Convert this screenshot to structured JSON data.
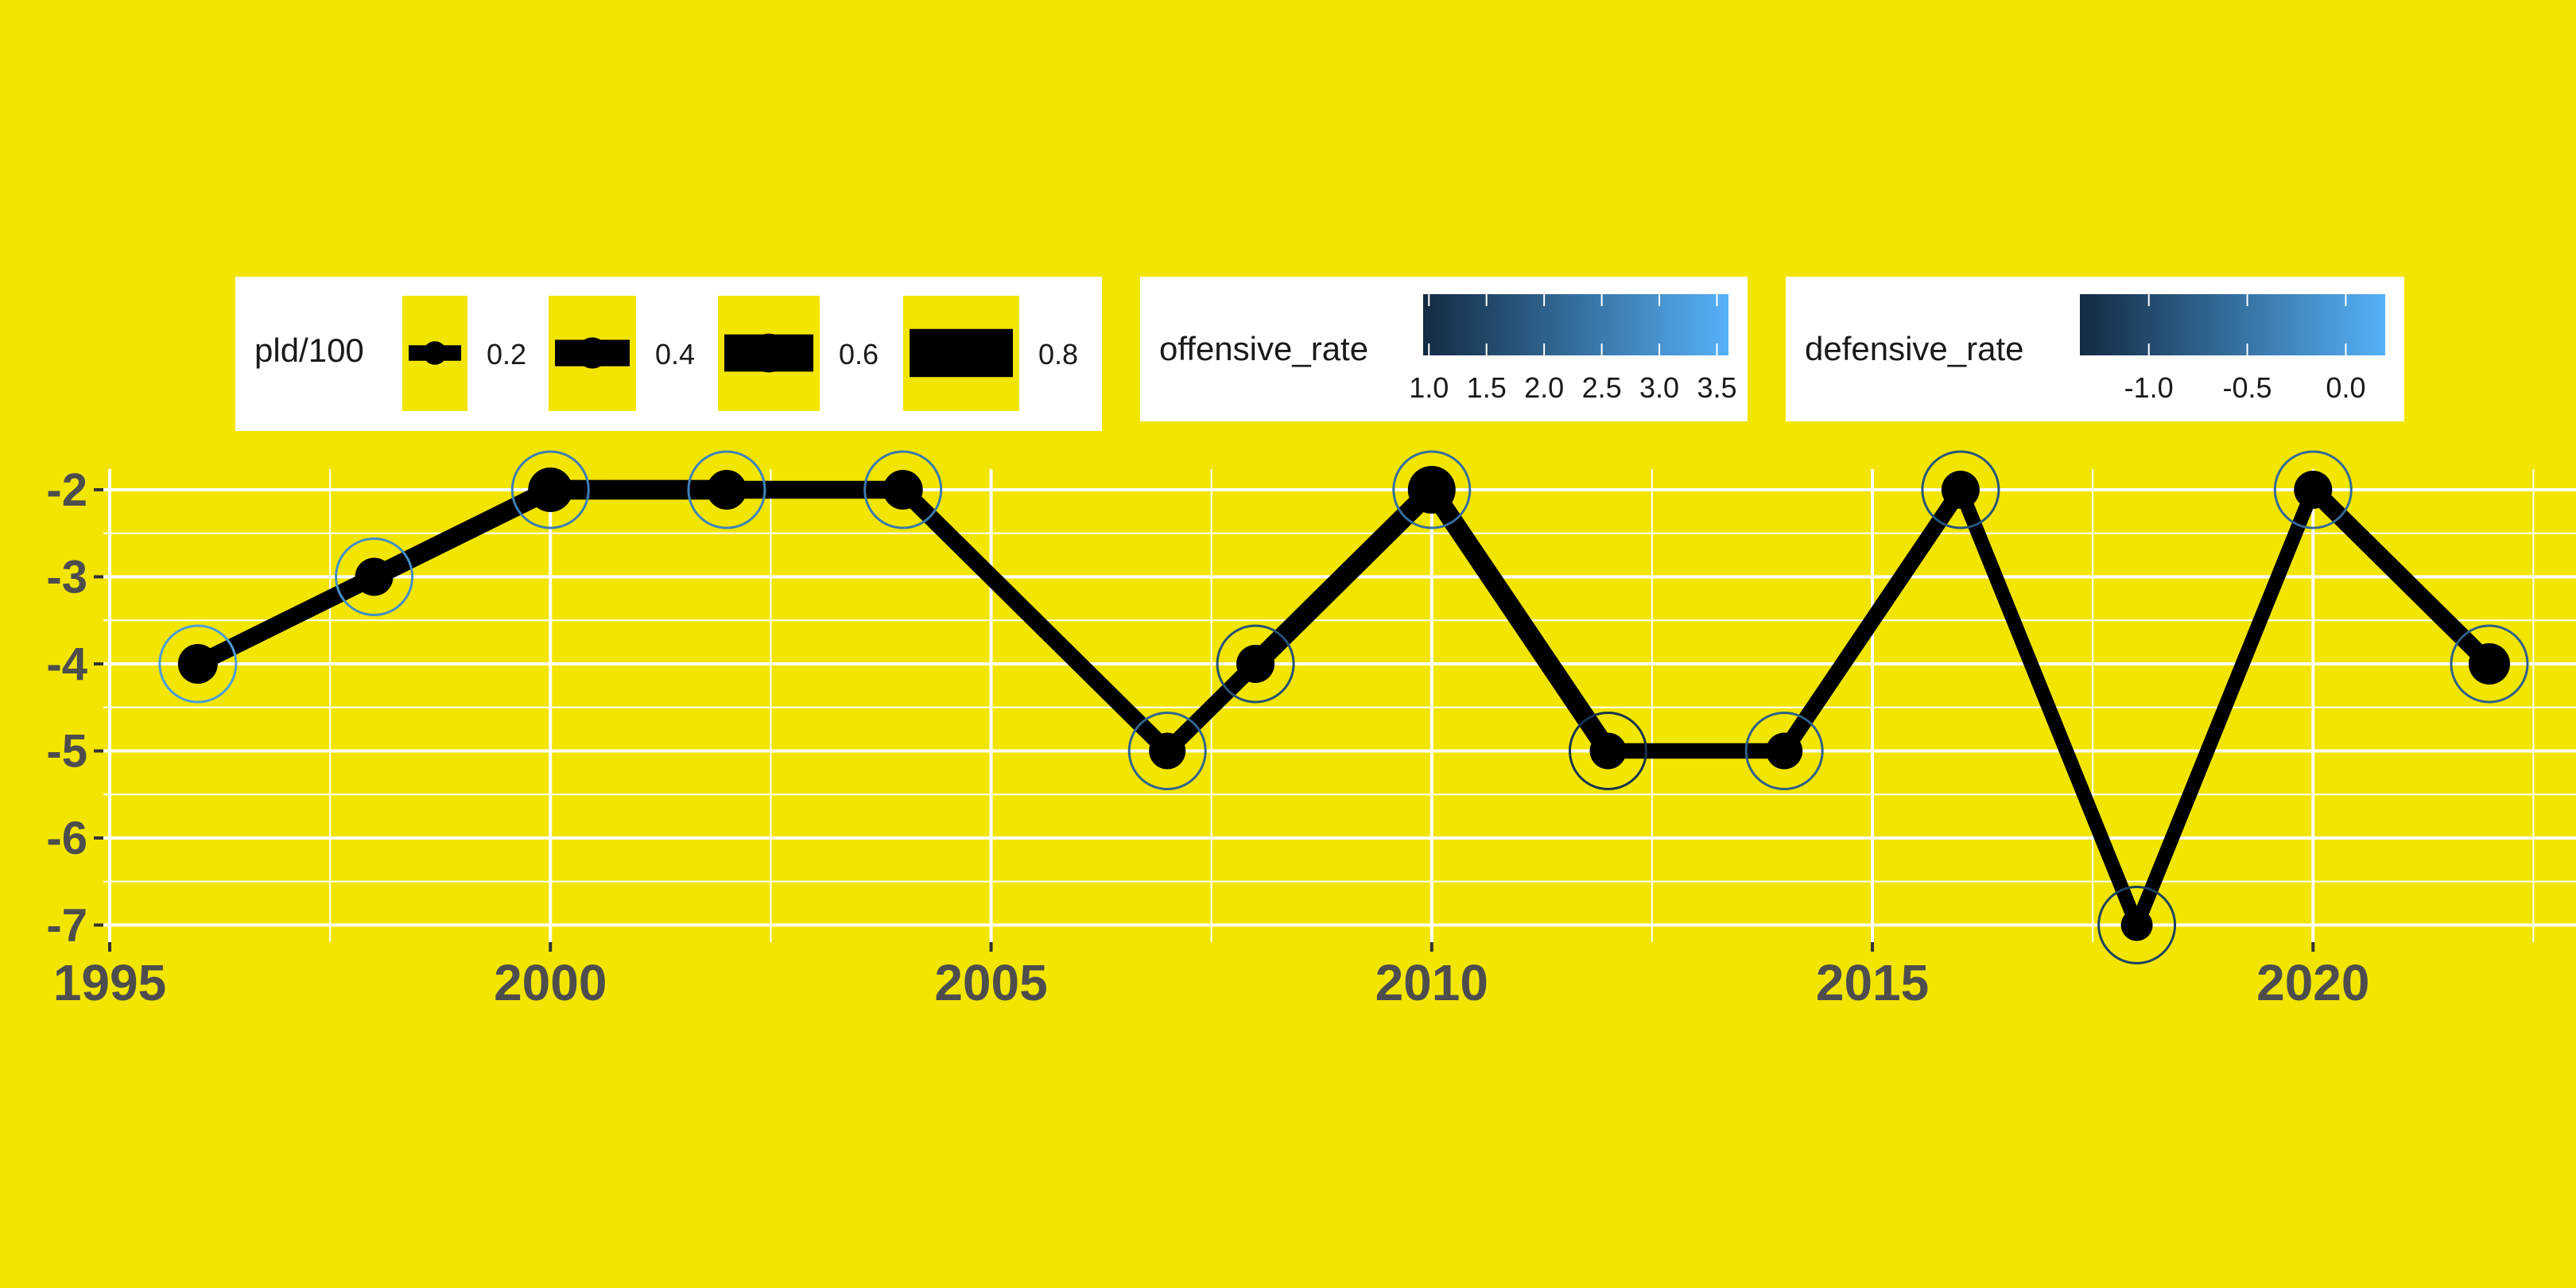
{
  "chart_data": {
    "type": "line",
    "title": "",
    "xlabel": "",
    "ylabel": "",
    "xlim": [
      1995,
      2023.3
    ],
    "ylim": [
      -7.2,
      -1.8
    ],
    "x_ticks": [
      "1995",
      "2000",
      "2005",
      "2010",
      "2015",
      "2020"
    ],
    "y_ticks": [
      "-2",
      "-3",
      "-4",
      "-5",
      "-6",
      "-7"
    ],
    "grid": true,
    "legend_position": "top",
    "colors": {
      "background": "#f2e500",
      "grid": "#ffffff",
      "line": "#000000",
      "tick_text": "#4d4d4d",
      "gradient_low": "#132b43",
      "gradient_high": "#56b1f7"
    },
    "points": [
      {
        "year": 1996,
        "value": -4,
        "pld": 0.55,
        "offensive_rate": 3.2,
        "defensive_rate": 0.1
      },
      {
        "year": 1998,
        "value": -3,
        "pld": 0.5,
        "offensive_rate": 2.9,
        "defensive_rate": -0.2
      },
      {
        "year": 2000,
        "value": -2,
        "pld": 0.7,
        "offensive_rate": 2.6,
        "defensive_rate": -0.3
      },
      {
        "year": 2002,
        "value": -2,
        "pld": 0.55,
        "offensive_rate": 2.7,
        "defensive_rate": -0.1
      },
      {
        "year": 2004,
        "value": -2,
        "pld": 0.55,
        "offensive_rate": 2.5,
        "defensive_rate": -0.2
      },
      {
        "year": 2007,
        "value": -5,
        "pld": 0.45,
        "offensive_rate": 2.1,
        "defensive_rate": -0.5
      },
      {
        "year": 2008,
        "value": -4,
        "pld": 0.5,
        "offensive_rate": 1.7,
        "defensive_rate": -0.7
      },
      {
        "year": 2010,
        "value": -2,
        "pld": 0.8,
        "offensive_rate": 2.3,
        "defensive_rate": -0.4
      },
      {
        "year": 2012,
        "value": -5,
        "pld": 0.45,
        "offensive_rate": 1.1,
        "defensive_rate": -1.3
      },
      {
        "year": 2014,
        "value": -5,
        "pld": 0.45,
        "offensive_rate": 2.0,
        "defensive_rate": -0.6
      },
      {
        "year": 2016,
        "value": -2,
        "pld": 0.5,
        "offensive_rate": 1.8,
        "defensive_rate": -0.9
      },
      {
        "year": 2018,
        "value": -7,
        "pld": 0.3,
        "offensive_rate": 1.4,
        "defensive_rate": -1.1
      },
      {
        "year": 2020,
        "value": -2,
        "pld": 0.5,
        "offensive_rate": 2.2,
        "defensive_rate": -0.5
      },
      {
        "year": 2022,
        "value": -4,
        "pld": 0.6,
        "offensive_rate": 2.0,
        "defensive_rate": -0.7
      }
    ],
    "legends": {
      "size": {
        "title": "pld/100",
        "breaks": [
          0.2,
          0.4,
          0.6,
          0.8
        ],
        "labels": [
          "0.2",
          "0.4",
          "0.6",
          "0.8"
        ]
      },
      "offensive": {
        "title": "offensive_rate",
        "min": 0.95,
        "max": 3.6,
        "breaks": [
          1.0,
          1.5,
          2.0,
          2.5,
          3.0,
          3.5
        ],
        "labels": [
          "1.0",
          "1.5",
          "2.0",
          "2.5",
          "3.0",
          "3.5"
        ]
      },
      "defensive": {
        "title": "defensive_rate",
        "min": -1.35,
        "max": 0.2,
        "breaks": [
          -1.0,
          -0.5,
          0.0
        ],
        "labels": [
          "-1.0",
          "-0.5",
          "0.0"
        ]
      }
    }
  }
}
